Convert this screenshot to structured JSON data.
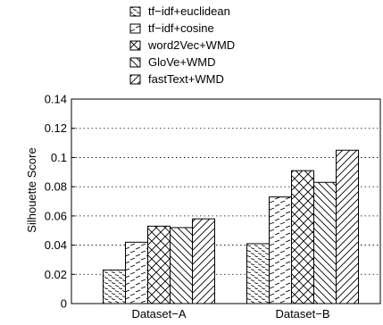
{
  "chart_data": {
    "type": "bar",
    "categories": [
      "Dataset−A",
      "Dataset−B"
    ],
    "series": [
      {
        "name": "tf−idf+euclidean",
        "pattern": "dense-dash",
        "values": [
          0.023,
          0.041
        ]
      },
      {
        "name": "tf−idf+cosine",
        "pattern": "dash-right",
        "values": [
          0.042,
          0.073
        ]
      },
      {
        "name": "word2Vec+WMD",
        "pattern": "cross-hatch",
        "values": [
          0.053,
          0.091
        ]
      },
      {
        "name": "GloVe+WMD",
        "pattern": "diag-left",
        "values": [
          0.052,
          0.083
        ]
      },
      {
        "name": "fastText+WMD",
        "pattern": "diag-right",
        "values": [
          0.058,
          0.105
        ]
      }
    ],
    "ylabel": "Silhouette Score",
    "xlabel": "",
    "ylim": [
      0,
      0.14
    ],
    "yticks": [
      "0",
      "0.02",
      "0.04",
      "0.06",
      "0.08",
      "0.1",
      "0.12",
      "0.14"
    ],
    "ytick_values": [
      0,
      0.02,
      0.04,
      0.06,
      0.08,
      0.1,
      0.12,
      0.14
    ],
    "grid": "horizontal-dotted",
    "legend_position": "top"
  }
}
